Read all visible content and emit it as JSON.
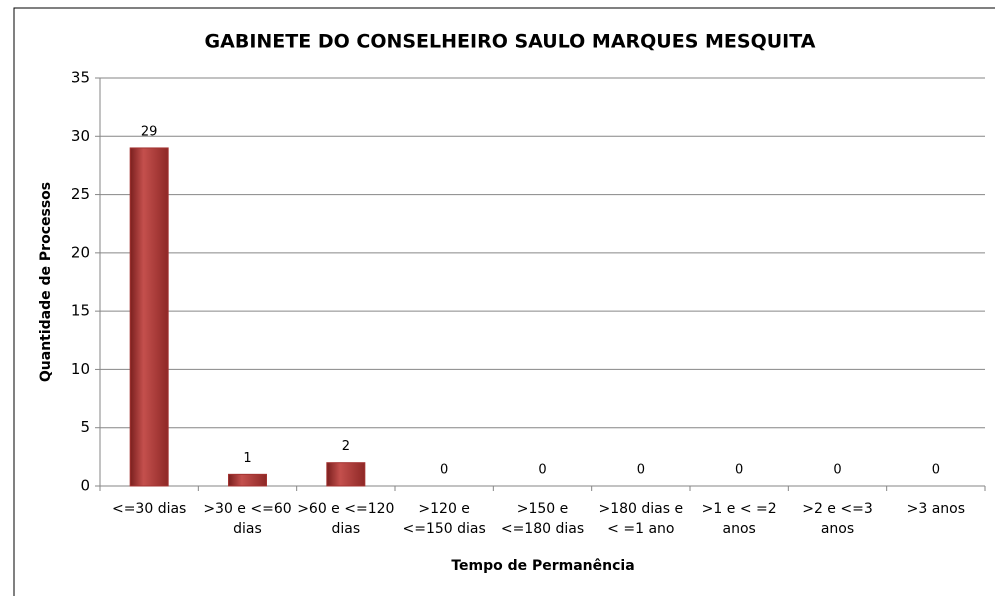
{
  "chart_data": {
    "type": "bar",
    "title": "GABINETE DO CONSELHEIRO SAULO MARQUES MESQUITA",
    "x_label": "Tempo de Permanência",
    "y_label": "Quantidade de Processos",
    "categories": [
      "<=30 dias",
      ">30 e <=60 dias",
      ">60 e <=120 dias",
      ">120 e <=150 dias",
      ">150 e <=180 dias",
      ">180 dias e < =1 ano",
      ">1 e < =2 anos",
      ">2 e <=3 anos",
      ">3 anos"
    ],
    "values": [
      29,
      1,
      2,
      0,
      0,
      0,
      0,
      0,
      0
    ],
    "color": "#a33331",
    "ylim": [
      0,
      35
    ],
    "yticks": [
      0,
      5,
      10,
      15,
      20,
      25,
      30,
      35
    ],
    "grid": true
  }
}
